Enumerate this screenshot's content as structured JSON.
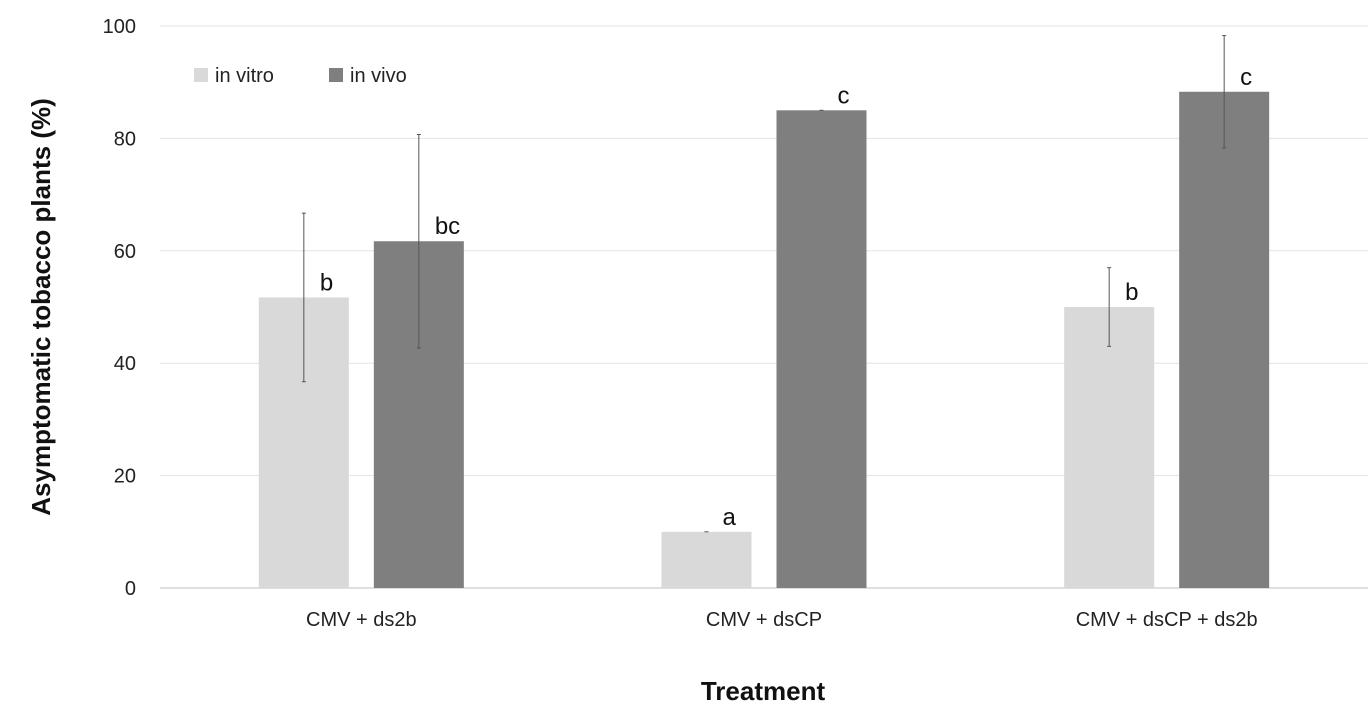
{
  "chart_data": {
    "type": "bar",
    "title": "",
    "xlabel": "Treatment",
    "ylabel": "Asymptomatic tobacco plants (%)",
    "ylim": [
      0,
      100
    ],
    "yticks": [
      0,
      20,
      40,
      60,
      80,
      100
    ],
    "grid": true,
    "legend_position": "top-left",
    "categories": [
      "CMV + ds2b",
      "CMV + dsCP",
      "CMV + dsCP + ds2b"
    ],
    "series": [
      {
        "name": "in vitro",
        "color": "#d9d9d9",
        "values": [
          51.7,
          10.0,
          50.0
        ],
        "errors": [
          15.0,
          0.0,
          7.0
        ],
        "labels": [
          "b",
          "a",
          "b"
        ]
      },
      {
        "name": "in vivo",
        "color": "#7f7f7f",
        "values": [
          61.7,
          85.0,
          88.3
        ],
        "errors": [
          19.0,
          0.0,
          10.0
        ],
        "labels": [
          "bc",
          "c",
          "c"
        ]
      }
    ]
  }
}
